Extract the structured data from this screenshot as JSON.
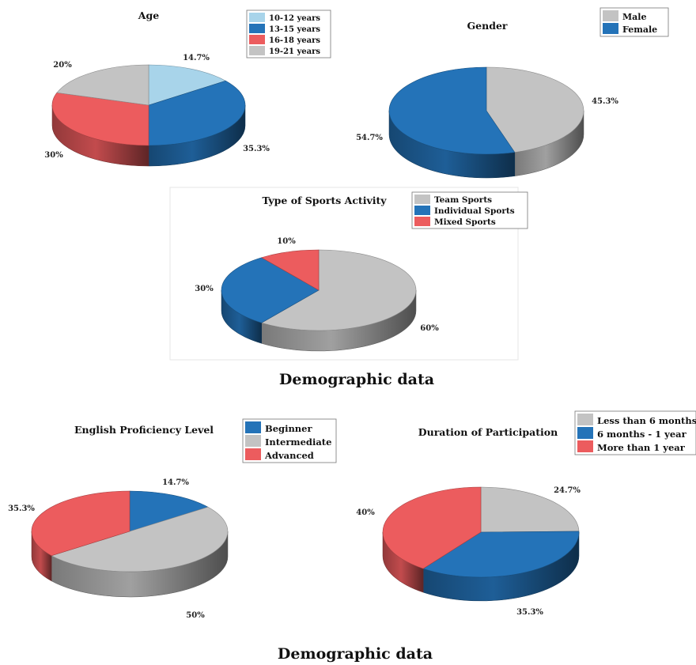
{
  "colors": {
    "light_blue": "#a8d4ea",
    "blue": "#2473b8",
    "red": "#ec5c5e",
    "gray": "#c3c3c3"
  },
  "captions": [
    "Demographic data",
    "Demographic data"
  ],
  "chart_data": [
    {
      "type": "pie",
      "title": "Age",
      "legend": "top-right",
      "slices": [
        {
          "label": "10-12 years",
          "value": 14.7,
          "data_label": "14.7%",
          "color": "#a8d4ea"
        },
        {
          "label": "13-15 years",
          "value": 35.3,
          "data_label": "35.3%",
          "color": "#2473b8"
        },
        {
          "label": "16-18 years",
          "value": 30,
          "data_label": "30%",
          "color": "#ec5c5e"
        },
        {
          "label": "19-21 years",
          "value": 20,
          "data_label": "20%",
          "color": "#c3c3c3"
        }
      ]
    },
    {
      "type": "pie",
      "title": "Gender",
      "legend": "top-right",
      "slices": [
        {
          "label": "Male",
          "value": 45.3,
          "data_label": "45.3%",
          "color": "#c3c3c3"
        },
        {
          "label": "Female",
          "value": 54.7,
          "data_label": "54.7%",
          "color": "#2473b8"
        }
      ]
    },
    {
      "type": "pie",
      "title": "Type of Sports Activity",
      "legend": "top-right",
      "slices": [
        {
          "label": "Team Sports",
          "value": 60,
          "data_label": "60%",
          "color": "#c3c3c3"
        },
        {
          "label": "Individual Sports",
          "value": 30,
          "data_label": "30%",
          "color": "#2473b8"
        },
        {
          "label": "Mixed Sports",
          "value": 10,
          "data_label": "10%",
          "color": "#ec5c5e"
        }
      ]
    },
    {
      "type": "pie",
      "title": "English Proficiency Level",
      "legend": "top-right",
      "slices": [
        {
          "label": "Beginner",
          "value": 14.7,
          "data_label": "14.7%",
          "color": "#2473b8"
        },
        {
          "label": "Intermediate",
          "value": 50,
          "data_label": "50%",
          "color": "#c3c3c3"
        },
        {
          "label": "Advanced",
          "value": 35.3,
          "data_label": "35.3%",
          "color": "#ec5c5e"
        }
      ]
    },
    {
      "type": "pie",
      "title": "Duration of Participation",
      "legend": "top-right",
      "slices": [
        {
          "label": "Less than 6 months",
          "value": 24.7,
          "data_label": "24.7%",
          "color": "#c3c3c3"
        },
        {
          "label": "6 months - 1 year",
          "value": 35.3,
          "data_label": "35.3%",
          "color": "#2473b8"
        },
        {
          "label": "More than 1 year",
          "value": 40,
          "data_label": "40%",
          "color": "#ec5c5e"
        }
      ]
    }
  ]
}
